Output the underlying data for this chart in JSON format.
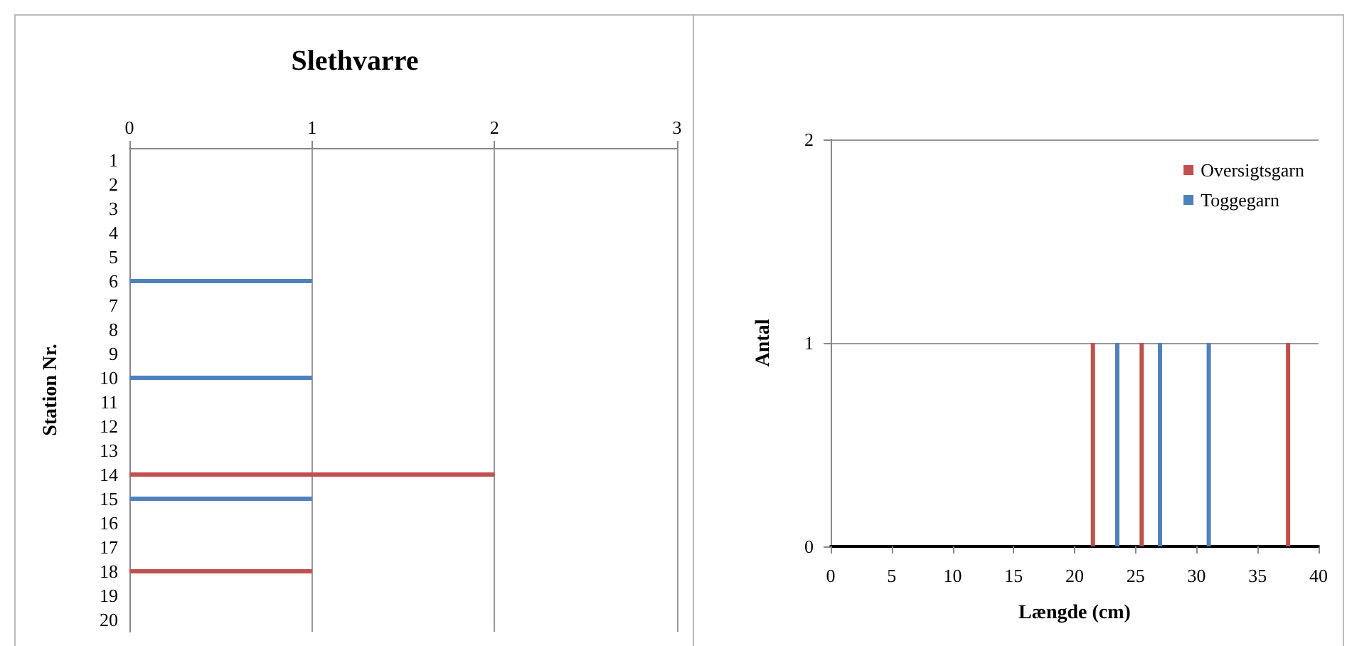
{
  "chart_data": [
    {
      "type": "bar",
      "title": "Slethvarre",
      "ylabel": "Station Nr.",
      "orientation": "horizontal",
      "categories": [
        "1",
        "2",
        "3",
        "4",
        "5",
        "6",
        "7",
        "8",
        "9",
        "10",
        "11",
        "12",
        "13",
        "14",
        "15",
        "16",
        "17",
        "18",
        "19",
        "20"
      ],
      "series": [
        {
          "color": "#c0504d",
          "values": [
            null,
            null,
            null,
            null,
            null,
            null,
            null,
            null,
            null,
            null,
            null,
            null,
            null,
            2,
            null,
            null,
            null,
            1,
            null,
            null
          ]
        },
        {
          "color": "#4f81bd",
          "values": [
            null,
            null,
            null,
            null,
            null,
            1,
            null,
            null,
            null,
            1,
            null,
            null,
            null,
            null,
            1,
            null,
            null,
            null,
            null,
            null
          ]
        }
      ],
      "xlim": [
        0,
        3
      ],
      "xticks": [
        0,
        1,
        2,
        3
      ],
      "grid": "x",
      "legend": false
    },
    {
      "type": "bar",
      "xlabel": "Længde (cm)",
      "ylabel": "Antal",
      "series": [
        {
          "name": "Oversigtsgarn",
          "color": "#c0504d",
          "x": [
            21.5,
            25.5,
            37.5
          ],
          "values": [
            1,
            1,
            1
          ]
        },
        {
          "name": "Toggegarn",
          "color": "#4f81bd",
          "x": [
            23.5,
            27,
            31
          ],
          "values": [
            1,
            1,
            1
          ]
        }
      ],
      "xlim": [
        0,
        40
      ],
      "xticks": [
        0,
        5,
        10,
        15,
        20,
        25,
        30,
        35,
        40
      ],
      "ylim": [
        0,
        2
      ],
      "yticks": [
        0,
        1,
        2
      ],
      "grid": "y",
      "legend": "top right"
    }
  ]
}
